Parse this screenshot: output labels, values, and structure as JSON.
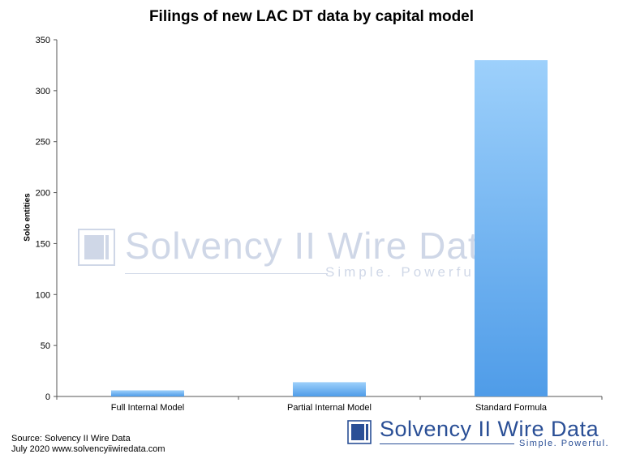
{
  "chart_data": {
    "type": "bar",
    "title": "Filings of new LAC DT data by capital model",
    "xlabel": "",
    "ylabel": "Solo entities",
    "categories": [
      "Full Internal Model",
      "Partial Internal Model",
      "Standard Formula"
    ],
    "values": [
      6,
      14,
      330
    ],
    "ylim": [
      0,
      350
    ],
    "yticks": [
      0,
      50,
      100,
      150,
      200,
      250,
      300,
      350
    ],
    "grid": false,
    "legend": "none",
    "bar_color_top": "#9dd0fb",
    "bar_color_bottom": "#4f9ce8"
  },
  "source": {
    "line1": "Source: Solvency II Wire Data",
    "line2": "July 2020   www.solvencyiiwiredata.com"
  },
  "brand": {
    "name": "Solvency II Wire Data",
    "tagline": "Simple. Powerful.",
    "color": "#2a4f96"
  },
  "watermark": {
    "name": "Solvency II Wire Data",
    "tagline": "Simple. Powerful."
  }
}
